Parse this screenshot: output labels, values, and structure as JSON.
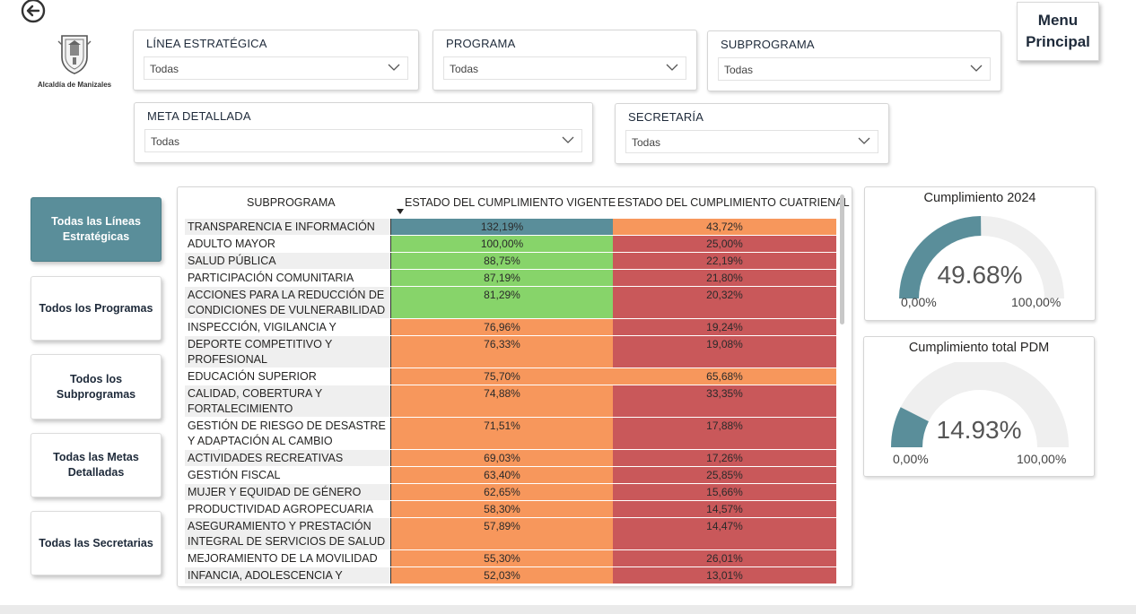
{
  "header": {
    "logo_text": "Alcaldía de Manizales",
    "menu_label": "Menu\nPrincipal"
  },
  "filters": {
    "linea": {
      "title": "LÍNEA ESTRATÉGICA",
      "value": "Todas"
    },
    "programa": {
      "title": "PROGRAMA",
      "value": "Todas"
    },
    "subprograma": {
      "title": "SUBPROGRAMA",
      "value": "Todas"
    },
    "meta": {
      "title": "META DETALLADA",
      "value": "Todas"
    },
    "secretaria": {
      "title": "SECRETARÍA",
      "value": "Todas"
    }
  },
  "side_buttons": [
    {
      "label": "Todas las Líneas Estratégicas",
      "active": true
    },
    {
      "label": "Todos los Programas",
      "active": false
    },
    {
      "label": "Todos los Subprogramas",
      "active": false
    },
    {
      "label": "Todas las Metas Detalladas",
      "active": false
    },
    {
      "label": "Todas las Secretarias",
      "active": false
    }
  ],
  "table": {
    "headers": [
      "SUBPROGRAMA",
      "ESTADO DEL CUMPLIMIENTO VIGENTE",
      "ESTADO DEL CUMPLIMIENTO CUATRIENAL"
    ],
    "rows": [
      {
        "name": "TRANSPARENCIA E INFORMACIÓN",
        "vigente": "132,19%",
        "cuatrienal": "43,72%",
        "vcolor": "#5a8e9a",
        "ccolor": "#f7975c",
        "tall": false
      },
      {
        "name": "ADULTO MAYOR",
        "vigente": "100,00%",
        "cuatrienal": "25,00%",
        "vcolor": "#87d46a",
        "ccolor": "#c9585a",
        "tall": false
      },
      {
        "name": "SALUD PÚBLICA",
        "vigente": "88,75%",
        "cuatrienal": "22,19%",
        "vcolor": "#87d46a",
        "ccolor": "#c9585a",
        "tall": false
      },
      {
        "name": "PARTICIPACIÓN COMUNITARIA",
        "vigente": "87,19%",
        "cuatrienal": "21,80%",
        "vcolor": "#87d46a",
        "ccolor": "#c9585a",
        "tall": false
      },
      {
        "name": "ACCIONES PARA LA REDUCCIÓN DE CONDICIONES DE VULNERABILIDAD",
        "vigente": "81,29%",
        "cuatrienal": "20,32%",
        "vcolor": "#87d46a",
        "ccolor": "#c9585a",
        "tall": true
      },
      {
        "name": "INSPECCIÓN, VIGILANCIA Y CONTROL",
        "vigente": "76,96%",
        "cuatrienal": "19,24%",
        "vcolor": "#f7975c",
        "ccolor": "#c9585a",
        "tall": false
      },
      {
        "name": "DEPORTE COMPETITIVO Y PROFESIONAL",
        "vigente": "76,33%",
        "cuatrienal": "19,08%",
        "vcolor": "#f7975c",
        "ccolor": "#c9585a",
        "tall": true
      },
      {
        "name": "EDUCACIÓN SUPERIOR",
        "vigente": "75,70%",
        "cuatrienal": "65,68%",
        "vcolor": "#f7975c",
        "ccolor": "#f7975c",
        "tall": false
      },
      {
        "name": "CALIDAD, COBERTURA Y FORTALECIMIENTO",
        "vigente": "74,88%",
        "cuatrienal": "33,35%",
        "vcolor": "#f7975c",
        "ccolor": "#c9585a",
        "tall": true
      },
      {
        "name": "GESTIÓN DE RIESGO DE DESASTRE Y ADAPTACIÓN AL CAMBIO CLIMÁTICO",
        "vigente": "71,51%",
        "cuatrienal": "17,88%",
        "vcolor": "#f7975c",
        "ccolor": "#c9585a",
        "tall": true
      },
      {
        "name": "ACTIVIDADES RECREATIVAS",
        "vigente": "69,03%",
        "cuatrienal": "17,26%",
        "vcolor": "#f7975c",
        "ccolor": "#c9585a",
        "tall": false
      },
      {
        "name": "GESTIÓN FISCAL",
        "vigente": "63,40%",
        "cuatrienal": "25,85%",
        "vcolor": "#f7975c",
        "ccolor": "#c9585a",
        "tall": false
      },
      {
        "name": "MUJER Y EQUIDAD DE GÉNERO",
        "vigente": "62,65%",
        "cuatrienal": "15,66%",
        "vcolor": "#f7975c",
        "ccolor": "#c9585a",
        "tall": false
      },
      {
        "name": "PRODUCTIVIDAD AGROPECUARIA",
        "vigente": "58,30%",
        "cuatrienal": "14,57%",
        "vcolor": "#f7975c",
        "ccolor": "#c9585a",
        "tall": false
      },
      {
        "name": "ASEGURAMIENTO Y PRESTACIÓN INTEGRAL DE SERVICIOS DE SALUD",
        "vigente": "57,89%",
        "cuatrienal": "14,47%",
        "vcolor": "#f7975c",
        "ccolor": "#c9585a",
        "tall": true
      },
      {
        "name": "MEJORAMIENTO DE LA MOVILIDAD",
        "vigente": "55,30%",
        "cuatrienal": "26,01%",
        "vcolor": "#f7975c",
        "ccolor": "#c9585a",
        "tall": false
      },
      {
        "name": "INFANCIA, ADOLESCENCIA Y",
        "vigente": "52,03%",
        "cuatrienal": "13,01%",
        "vcolor": "#f7975c",
        "ccolor": "#c9585a",
        "tall": false
      }
    ]
  },
  "gauges": {
    "g2024": {
      "title": "Cumplimiento 2024",
      "value_label": "49.68%",
      "value": 0.4968,
      "min": "0,00%",
      "max": "100,00%",
      "color": "#5a8e9a"
    },
    "gtotal": {
      "title": "Cumplimiento total PDM",
      "value_label": "14.93%",
      "value": 0.1493,
      "min": "0,00%",
      "max": "100,00%",
      "color": "#5a8e9a"
    }
  }
}
